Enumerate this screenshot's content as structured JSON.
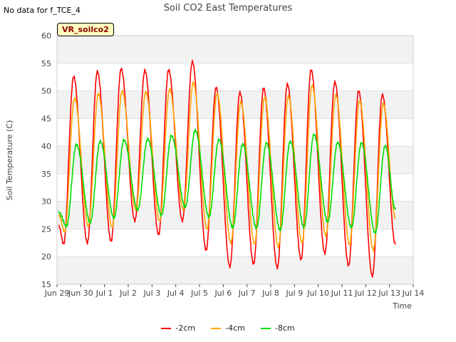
{
  "header": {
    "note": "No data for f_TCE_4",
    "title": "Soil CO2 East Temperatures"
  },
  "badge": {
    "label": "VR_soilco2"
  },
  "chart_data": {
    "type": "line",
    "title": "Soil CO2 East Temperatures",
    "xlabel": "Time",
    "ylabel": "Soil Temperature (C)",
    "ylim": [
      15,
      60
    ],
    "yticks": [
      15,
      20,
      25,
      30,
      35,
      40,
      45,
      50,
      55,
      60
    ],
    "xlim": [
      "Jun 29",
      "Jul 14"
    ],
    "xtick_labels": [
      "Jun 29",
      "Jun 30",
      "Jul 1",
      "Jul 2",
      "Jul 3",
      "Jul 4",
      "Jul 5",
      "Jul 6",
      "Jul 7",
      "Jul 8",
      "Jul 9",
      "Jul 10",
      "Jul 11",
      "Jul 12",
      "Jul 13",
      "Jul 14"
    ],
    "grid": true,
    "legend_position": "bottom-center",
    "series": [
      {
        "name": "-2cm",
        "color": "#ff0000",
        "daily_min": [
          22.3,
          22.5,
          22.8,
          26.5,
          24.0,
          26.5,
          21.2,
          18.2,
          18.7,
          18.0,
          19.5,
          20.6,
          18.4,
          16.5
        ],
        "daily_max": [
          52.6,
          53.5,
          54.0,
          53.7,
          53.8,
          55.3,
          50.6,
          49.7,
          50.5,
          51.2,
          53.8,
          51.6,
          50.0,
          49.3
        ],
        "start": 25.5,
        "end": 22.2
      },
      {
        "name": "-4cm",
        "color": "#ffa500",
        "daily_min": [
          24.5,
          25.5,
          25.3,
          28.5,
          26.5,
          28.5,
          25.0,
          22.5,
          22.3,
          21.8,
          22.5,
          23.8,
          22.2,
          21.2
        ],
        "daily_max": [
          48.7,
          49.5,
          50.0,
          49.8,
          50.3,
          51.5,
          49.5,
          48.0,
          48.8,
          49.0,
          51.0,
          49.2,
          48.2,
          47.7
        ],
        "start": 27.5,
        "end": 27.0
      },
      {
        "name": "-8cm",
        "color": "#00dd00",
        "daily_min": [
          25.5,
          26.2,
          27.0,
          28.5,
          27.5,
          29.0,
          27.2,
          25.3,
          25.2,
          24.8,
          25.3,
          26.3,
          25.3,
          24.3
        ],
        "daily_max": [
          40.3,
          40.9,
          41.1,
          41.3,
          41.9,
          42.9,
          41.2,
          40.4,
          40.6,
          40.9,
          42.1,
          40.7,
          40.6,
          40.1
        ],
        "start": 28.0,
        "end": 28.5
      }
    ]
  }
}
